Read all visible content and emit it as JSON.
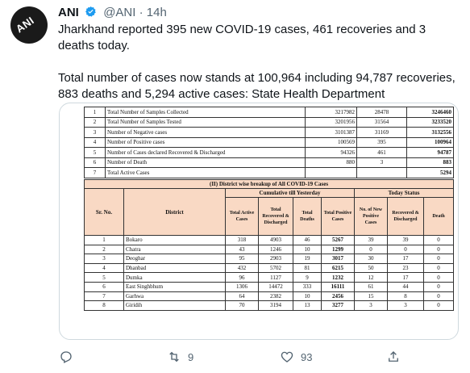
{
  "tweet": {
    "name": "ANI",
    "handle": "@ANI",
    "time": "· 14h",
    "avatar_text": "ANI",
    "text_line1": "Jharkhand reported 395 new COVID-19 cases, 461 recoveries and 3 deaths today.",
    "text_line2": "Total number of cases now stands at 100,964 including 94,787 recoveries, 883 deaths and 5,294 active cases: State Health Department"
  },
  "summary_rows": [
    {
      "no": "1",
      "label": "Total Number of Samples Collected",
      "a": "3217982",
      "b": "28478",
      "c": "3246460"
    },
    {
      "no": "2",
      "label": "Total Number of Samples Tested",
      "a": "3201956",
      "b": "31564",
      "c": "3233520"
    },
    {
      "no": "3",
      "label": "Number of Negative cases",
      "a": "3101387",
      "b": "31169",
      "c": "3132556"
    },
    {
      "no": "4",
      "label": "Number of Positive cases",
      "a": "100569",
      "b": "395",
      "c": "100964"
    },
    {
      "no": "5",
      "label": "Number of Cases declared Recovered & Discharged",
      "a": "94326",
      "b": "461",
      "c": "94787"
    },
    {
      "no": "6",
      "label": "Number of Death",
      "a": "880",
      "b": "3",
      "c": "883"
    },
    {
      "no": "7",
      "label": "Total Active Cases",
      "a": "",
      "b": "",
      "c": "5294"
    }
  ],
  "district_table": {
    "title": "(II) District wise breakup of All COVID-19 Cases",
    "cumulative_header": "Cumulative till Yesterday",
    "today_header": "Today Status",
    "col_srno": "Sr. No.",
    "col_district": "District",
    "col_active": "Total Active Cases",
    "col_recovered": "Total Recovered & Discharged",
    "col_deaths": "Total Deaths",
    "col_positive": "Total Positive Cases",
    "col_new_positive": "No. of New Positive Cases",
    "col_today_recovered": "Recovered & Discharged",
    "col_death": "Death",
    "rows": [
      {
        "no": "1",
        "district": "Bokaro",
        "active": "318",
        "recovered": "4903",
        "deaths": "46",
        "positive": "5267",
        "new": "39",
        "rec": "39",
        "death": "0"
      },
      {
        "no": "2",
        "district": "Chatra",
        "active": "43",
        "recovered": "1246",
        "deaths": "10",
        "positive": "1299",
        "new": "0",
        "rec": "0",
        "death": "0"
      },
      {
        "no": "3",
        "district": "Deoghar",
        "active": "95",
        "recovered": "2903",
        "deaths": "19",
        "positive": "3017",
        "new": "30",
        "rec": "17",
        "death": "0"
      },
      {
        "no": "4",
        "district": "Dhanbad",
        "active": "432",
        "recovered": "5702",
        "deaths": "81",
        "positive": "6215",
        "new": "50",
        "rec": "23",
        "death": "0"
      },
      {
        "no": "5",
        "district": "Dumka",
        "active": "96",
        "recovered": "1127",
        "deaths": "9",
        "positive": "1232",
        "new": "12",
        "rec": "17",
        "death": "0"
      },
      {
        "no": "6",
        "district": "East Singhbhum",
        "active": "1306",
        "recovered": "14472",
        "deaths": "333",
        "positive": "16111",
        "new": "61",
        "rec": "44",
        "death": "0"
      },
      {
        "no": "7",
        "district": "Garhwa",
        "active": "64",
        "recovered": "2382",
        "deaths": "10",
        "positive": "2456",
        "new": "15",
        "rec": "8",
        "death": "0"
      },
      {
        "no": "8",
        "district": "Giridih",
        "active": "70",
        "recovered": "3194",
        "deaths": "13",
        "positive": "3277",
        "new": "3",
        "rec": "3",
        "death": "0"
      }
    ]
  },
  "actions": {
    "retweets": "9",
    "likes": "93"
  },
  "colors": {
    "header_fill": "#f9d9c4",
    "text_secondary": "#536471",
    "verified_blue": "#1d9bf0"
  }
}
